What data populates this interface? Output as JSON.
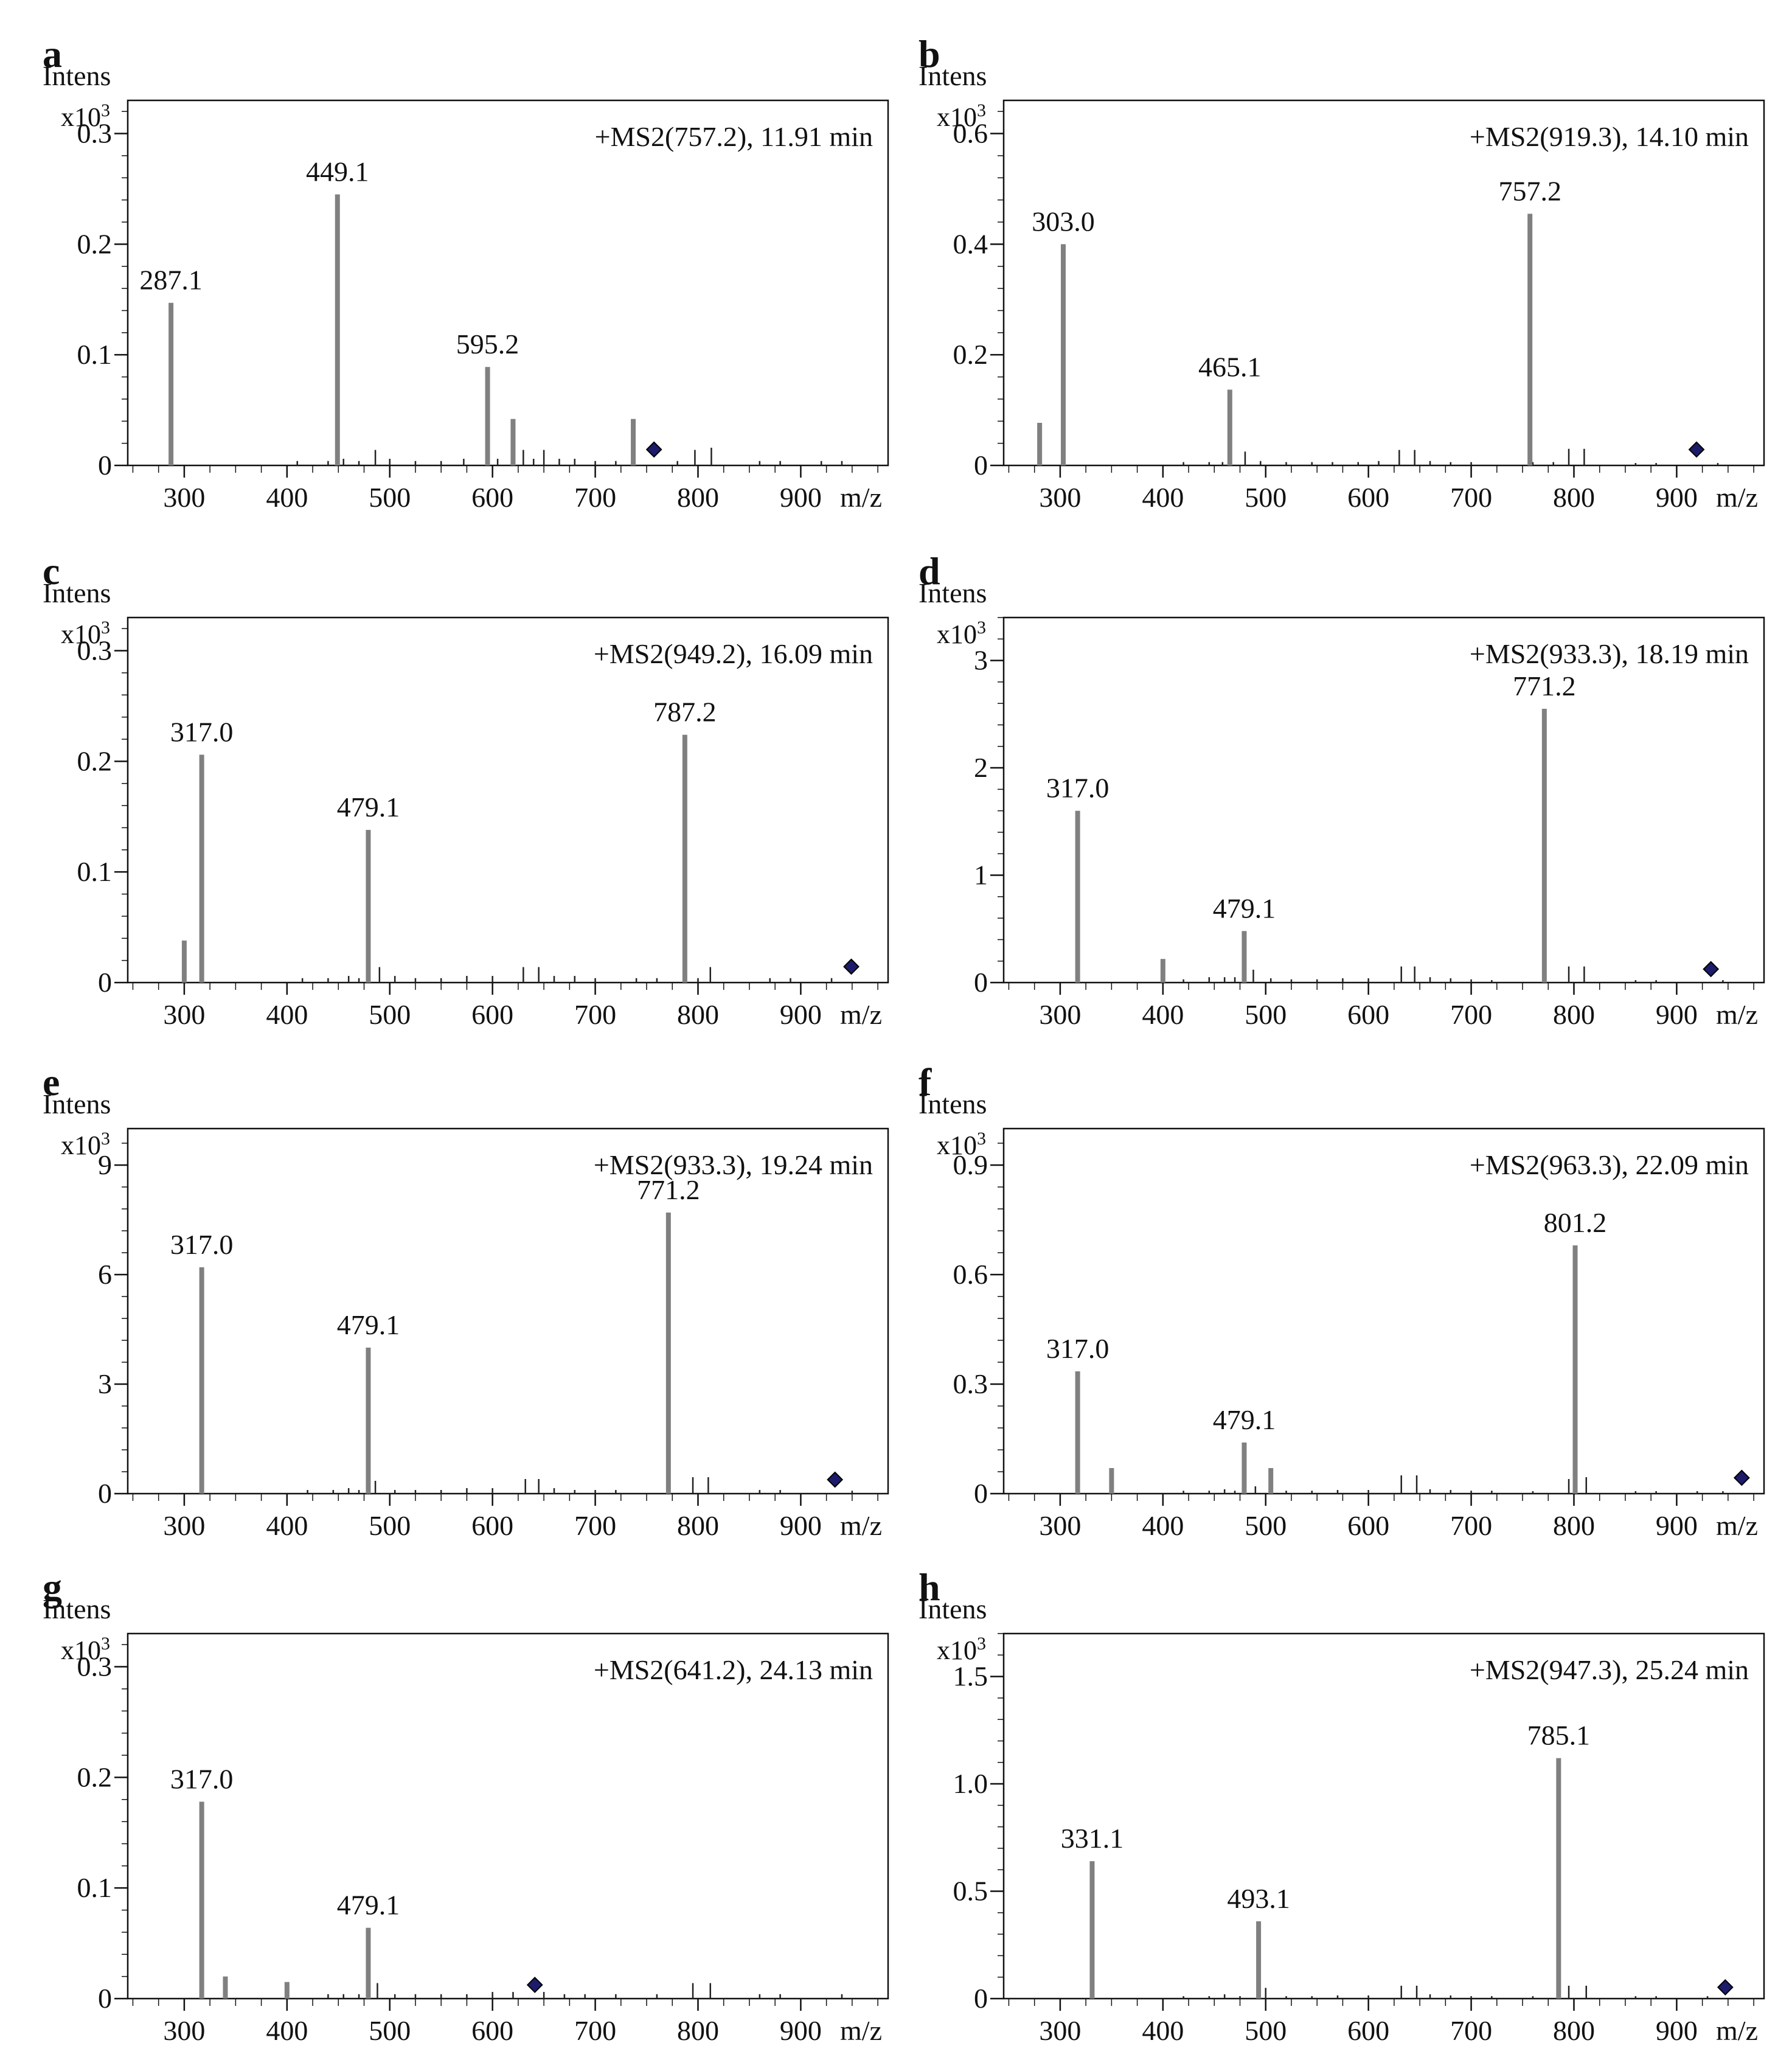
{
  "figure": {
    "y_unit": "Intens",
    "y_scale": "x10",
    "y_scale_exp": "3",
    "x_unit": "m/z"
  },
  "colors": {
    "major_peak": "#808080",
    "minor_peak": "#222222",
    "frame": "#111111",
    "precursor_marker": "#1c1c6b"
  },
  "chart_data": [
    {
      "panel": "a",
      "type": "bar",
      "title": "+MS2(757.2), 11.91 min",
      "ylabel": "Intens",
      "xlabel": "m/z",
      "x_range": [
        245,
        985
      ],
      "ylim": [
        0,
        0.33
      ],
      "y_ticks": [
        {
          "v": 0,
          "label": "0"
        },
        {
          "v": 0.1,
          "label": "0.1"
        },
        {
          "v": 0.2,
          "label": "0.2"
        },
        {
          "v": 0.3,
          "label": "0.3"
        }
      ],
      "x_ticks": [
        300,
        400,
        500,
        600,
        700,
        800,
        900
      ],
      "precursor": 757.2,
      "precursor_y": 0.01,
      "peaks": [
        {
          "x": 287.1,
          "y": 0.147,
          "label": "287.1"
        },
        {
          "x": 449.1,
          "y": 0.245,
          "label": "449.1"
        },
        {
          "x": 595.2,
          "y": 0.089,
          "label": "595.2"
        },
        {
          "x": 620,
          "y": 0.042
        },
        {
          "x": 737,
          "y": 0.042
        }
      ],
      "minor_peaks": [
        [
          410,
          0.004
        ],
        [
          440,
          0.004
        ],
        [
          455,
          0.006
        ],
        [
          470,
          0.004
        ],
        [
          486,
          0.014
        ],
        [
          500,
          0.006
        ],
        [
          525,
          0.004
        ],
        [
          550,
          0.004
        ],
        [
          572,
          0.006
        ],
        [
          605,
          0.006
        ],
        [
          630,
          0.014
        ],
        [
          640,
          0.006
        ],
        [
          650,
          0.014
        ],
        [
          665,
          0.006
        ],
        [
          680,
          0.006
        ],
        [
          700,
          0.004
        ],
        [
          720,
          0.004
        ],
        [
          780,
          0.004
        ],
        [
          797,
          0.014
        ],
        [
          813,
          0.016
        ],
        [
          860,
          0.004
        ],
        [
          880,
          0.004
        ],
        [
          920,
          0.004
        ],
        [
          940,
          0.004
        ]
      ]
    },
    {
      "panel": "b",
      "type": "bar",
      "title": "+MS2(919.3), 14.10 min",
      "ylabel": "Intens",
      "xlabel": "m/z",
      "x_range": [
        245,
        985
      ],
      "ylim": [
        0,
        0.66
      ],
      "y_ticks": [
        {
          "v": 0,
          "label": "0"
        },
        {
          "v": 0.2,
          "label": "0.2"
        },
        {
          "v": 0.4,
          "label": "0.4"
        },
        {
          "v": 0.6,
          "label": "0.6"
        }
      ],
      "x_ticks": [
        300,
        400,
        500,
        600,
        700,
        800,
        900
      ],
      "precursor": 919.3,
      "precursor_y": 0.02,
      "peaks": [
        {
          "x": 280,
          "y": 0.077
        },
        {
          "x": 303.0,
          "y": 0.4,
          "label": "303.0"
        },
        {
          "x": 465.1,
          "y": 0.137,
          "label": "465.1"
        },
        {
          "x": 757.2,
          "y": 0.455,
          "label": "757.2"
        }
      ],
      "minor_peaks": [
        [
          420,
          0.006
        ],
        [
          445,
          0.006
        ],
        [
          458,
          0.006
        ],
        [
          480,
          0.025
        ],
        [
          495,
          0.008
        ],
        [
          520,
          0.006
        ],
        [
          545,
          0.006
        ],
        [
          565,
          0.006
        ],
        [
          590,
          0.006
        ],
        [
          610,
          0.008
        ],
        [
          630,
          0.028
        ],
        [
          645,
          0.028
        ],
        [
          660,
          0.008
        ],
        [
          680,
          0.006
        ],
        [
          700,
          0.006
        ],
        [
          760,
          0.006
        ],
        [
          780,
          0.006
        ],
        [
          795,
          0.03
        ],
        [
          810,
          0.03
        ],
        [
          860,
          0.004
        ],
        [
          880,
          0.004
        ],
        [
          940,
          0.004
        ]
      ]
    },
    {
      "panel": "c",
      "type": "bar",
      "title": "+MS2(949.2), 16.09 min",
      "ylabel": "Intens",
      "xlabel": "m/z",
      "x_range": [
        245,
        985
      ],
      "ylim": [
        0,
        0.33
      ],
      "y_ticks": [
        {
          "v": 0,
          "label": "0"
        },
        {
          "v": 0.1,
          "label": "0.1"
        },
        {
          "v": 0.2,
          "label": "0.2"
        },
        {
          "v": 0.3,
          "label": "0.3"
        }
      ],
      "x_ticks": [
        300,
        400,
        500,
        600,
        700,
        800,
        900
      ],
      "precursor": 949.2,
      "precursor_y": 0.01,
      "peaks": [
        {
          "x": 300,
          "y": 0.038
        },
        {
          "x": 317.0,
          "y": 0.206,
          "label": "317.0"
        },
        {
          "x": 479.1,
          "y": 0.138,
          "label": "479.1"
        },
        {
          "x": 787.2,
          "y": 0.224,
          "label": "787.2"
        }
      ],
      "minor_peaks": [
        [
          415,
          0.004
        ],
        [
          440,
          0.004
        ],
        [
          460,
          0.006
        ],
        [
          470,
          0.004
        ],
        [
          490,
          0.014
        ],
        [
          505,
          0.006
        ],
        [
          525,
          0.004
        ],
        [
          550,
          0.004
        ],
        [
          575,
          0.006
        ],
        [
          600,
          0.006
        ],
        [
          630,
          0.014
        ],
        [
          645,
          0.014
        ],
        [
          660,
          0.006
        ],
        [
          680,
          0.006
        ],
        [
          700,
          0.004
        ],
        [
          740,
          0.004
        ],
        [
          760,
          0.004
        ],
        [
          800,
          0.004
        ],
        [
          812,
          0.014
        ],
        [
          870,
          0.004
        ],
        [
          890,
          0.004
        ],
        [
          930,
          0.004
        ]
      ]
    },
    {
      "panel": "d",
      "type": "bar",
      "title": "+MS2(933.3), 18.19 min",
      "ylabel": "Intens",
      "xlabel": "m/z",
      "x_range": [
        245,
        985
      ],
      "ylim": [
        0,
        3.4
      ],
      "y_ticks": [
        {
          "v": 0,
          "label": "0"
        },
        {
          "v": 1,
          "label": "1"
        },
        {
          "v": 2,
          "label": "2"
        },
        {
          "v": 3,
          "label": "3"
        }
      ],
      "x_ticks": [
        300,
        400,
        500,
        600,
        700,
        800,
        900
      ],
      "precursor": 933.3,
      "precursor_y": 0.08,
      "peaks": [
        {
          "x": 317.0,
          "y": 1.6,
          "label": "317.0"
        },
        {
          "x": 400,
          "y": 0.22
        },
        {
          "x": 479.1,
          "y": 0.48,
          "label": "479.1"
        },
        {
          "x": 771.2,
          "y": 2.55,
          "label": "771.2"
        }
      ],
      "minor_peaks": [
        [
          420,
          0.03
        ],
        [
          445,
          0.05
        ],
        [
          460,
          0.05
        ],
        [
          470,
          0.05
        ],
        [
          488,
          0.12
        ],
        [
          505,
          0.04
        ],
        [
          525,
          0.03
        ],
        [
          550,
          0.03
        ],
        [
          575,
          0.04
        ],
        [
          600,
          0.04
        ],
        [
          632,
          0.15
        ],
        [
          645,
          0.15
        ],
        [
          660,
          0.05
        ],
        [
          680,
          0.04
        ],
        [
          700,
          0.03
        ],
        [
          720,
          0.02
        ],
        [
          795,
          0.15
        ],
        [
          810,
          0.15
        ],
        [
          860,
          0.02
        ],
        [
          880,
          0.02
        ],
        [
          945,
          0.02
        ]
      ]
    },
    {
      "panel": "e",
      "type": "bar",
      "title": "+MS2(933.3), 19.24 min",
      "ylabel": "Intens",
      "xlabel": "m/z",
      "x_range": [
        245,
        985
      ],
      "ylim": [
        0,
        10
      ],
      "y_ticks": [
        {
          "v": 0,
          "label": "0"
        },
        {
          "v": 3,
          "label": "3"
        },
        {
          "v": 6,
          "label": "6"
        },
        {
          "v": 9,
          "label": "9"
        }
      ],
      "x_ticks": [
        300,
        400,
        500,
        600,
        700,
        800,
        900
      ],
      "precursor": 933.3,
      "precursor_y": 0.25,
      "peaks": [
        {
          "x": 317.0,
          "y": 6.2,
          "label": "317.0"
        },
        {
          "x": 479.1,
          "y": 4.0,
          "label": "479.1"
        },
        {
          "x": 771.2,
          "y": 7.7,
          "label": "771.2"
        }
      ],
      "minor_peaks": [
        [
          420,
          0.1
        ],
        [
          445,
          0.1
        ],
        [
          460,
          0.15
        ],
        [
          470,
          0.1
        ],
        [
          486,
          0.35
        ],
        [
          505,
          0.1
        ],
        [
          525,
          0.1
        ],
        [
          550,
          0.1
        ],
        [
          575,
          0.15
        ],
        [
          600,
          0.15
        ],
        [
          632,
          0.4
        ],
        [
          645,
          0.4
        ],
        [
          660,
          0.15
        ],
        [
          680,
          0.1
        ],
        [
          700,
          0.1
        ],
        [
          720,
          0.1
        ],
        [
          795,
          0.45
        ],
        [
          810,
          0.45
        ],
        [
          860,
          0.1
        ],
        [
          880,
          0.1
        ],
        [
          950,
          0.08
        ]
      ]
    },
    {
      "panel": "f",
      "type": "bar",
      "title": "+MS2(963.3), 22.09 min",
      "ylabel": "Intens",
      "xlabel": "m/z",
      "x_range": [
        245,
        985
      ],
      "ylim": [
        0,
        1.0
      ],
      "y_ticks": [
        {
          "v": 0,
          "label": "0"
        },
        {
          "v": 0.3,
          "label": "0.3"
        },
        {
          "v": 0.6,
          "label": "0.6"
        },
        {
          "v": 0.9,
          "label": "0.9"
        }
      ],
      "x_ticks": [
        300,
        400,
        500,
        600,
        700,
        800,
        900
      ],
      "precursor": 963.3,
      "precursor_y": 0.03,
      "peaks": [
        {
          "x": 317.0,
          "y": 0.335,
          "label": "317.0"
        },
        {
          "x": 350,
          "y": 0.07
        },
        {
          "x": 479.1,
          "y": 0.14,
          "label": "479.1"
        },
        {
          "x": 505,
          "y": 0.07
        },
        {
          "x": 801.2,
          "y": 0.68,
          "label": "801.2"
        }
      ],
      "minor_peaks": [
        [
          420,
          0.008
        ],
        [
          445,
          0.008
        ],
        [
          460,
          0.012
        ],
        [
          470,
          0.008
        ],
        [
          490,
          0.02
        ],
        [
          520,
          0.008
        ],
        [
          545,
          0.008
        ],
        [
          570,
          0.01
        ],
        [
          600,
          0.01
        ],
        [
          632,
          0.05
        ],
        [
          647,
          0.05
        ],
        [
          660,
          0.012
        ],
        [
          680,
          0.01
        ],
        [
          700,
          0.008
        ],
        [
          720,
          0.008
        ],
        [
          760,
          0.006
        ],
        [
          795,
          0.04
        ],
        [
          812,
          0.045
        ],
        [
          860,
          0.006
        ],
        [
          880,
          0.006
        ],
        [
          920,
          0.006
        ],
        [
          945,
          0.006
        ]
      ]
    },
    {
      "panel": "g",
      "type": "bar",
      "title": "+MS2(641.2), 24.13 min",
      "ylabel": "Intens",
      "xlabel": "m/z",
      "x_range": [
        245,
        985
      ],
      "ylim": [
        0,
        0.33
      ],
      "y_ticks": [
        {
          "v": 0,
          "label": "0"
        },
        {
          "v": 0.1,
          "label": "0.1"
        },
        {
          "v": 0.2,
          "label": "0.2"
        },
        {
          "v": 0.3,
          "label": "0.3"
        }
      ],
      "x_ticks": [
        300,
        400,
        500,
        600,
        700,
        800,
        900
      ],
      "precursor": 641.2,
      "precursor_y": 0.008,
      "peaks": [
        {
          "x": 317.0,
          "y": 0.178,
          "label": "317.0"
        },
        {
          "x": 340,
          "y": 0.02
        },
        {
          "x": 400,
          "y": 0.015
        },
        {
          "x": 479.1,
          "y": 0.064,
          "label": "479.1"
        }
      ],
      "minor_peaks": [
        [
          440,
          0.004
        ],
        [
          455,
          0.004
        ],
        [
          470,
          0.004
        ],
        [
          488,
          0.014
        ],
        [
          505,
          0.004
        ],
        [
          525,
          0.004
        ],
        [
          550,
          0.004
        ],
        [
          575,
          0.004
        ],
        [
          600,
          0.006
        ],
        [
          620,
          0.006
        ],
        [
          650,
          0.006
        ],
        [
          670,
          0.004
        ],
        [
          690,
          0.004
        ],
        [
          720,
          0.004
        ],
        [
          760,
          0.004
        ],
        [
          795,
          0.014
        ],
        [
          812,
          0.014
        ],
        [
          860,
          0.004
        ],
        [
          880,
          0.004
        ],
        [
          940,
          0.004
        ]
      ]
    },
    {
      "panel": "h",
      "type": "bar",
      "title": "+MS2(947.3), 25.24 min",
      "ylabel": "Intens",
      "xlabel": "m/z",
      "x_range": [
        245,
        985
      ],
      "ylim": [
        0,
        1.7
      ],
      "y_ticks": [
        {
          "v": 0,
          "label": "0"
        },
        {
          "v": 0.5,
          "label": "0.5"
        },
        {
          "v": 1.0,
          "label": "1.0"
        },
        {
          "v": 1.5,
          "label": "1.5"
        }
      ],
      "x_ticks": [
        300,
        400,
        500,
        600,
        700,
        800,
        900
      ],
      "precursor": 947.3,
      "precursor_y": 0.03,
      "peaks": [
        {
          "x": 331.1,
          "y": 0.64,
          "label": "331.1"
        },
        {
          "x": 493.1,
          "y": 0.36,
          "label": "493.1"
        },
        {
          "x": 785.1,
          "y": 1.12,
          "label": "785.1"
        }
      ],
      "minor_peaks": [
        [
          420,
          0.01
        ],
        [
          445,
          0.01
        ],
        [
          460,
          0.02
        ],
        [
          475,
          0.01
        ],
        [
          500,
          0.05
        ],
        [
          520,
          0.01
        ],
        [
          545,
          0.01
        ],
        [
          570,
          0.015
        ],
        [
          600,
          0.015
        ],
        [
          632,
          0.06
        ],
        [
          647,
          0.06
        ],
        [
          660,
          0.02
        ],
        [
          680,
          0.015
        ],
        [
          700,
          0.01
        ],
        [
          720,
          0.01
        ],
        [
          760,
          0.01
        ],
        [
          795,
          0.06
        ],
        [
          812,
          0.06
        ],
        [
          860,
          0.01
        ],
        [
          880,
          0.01
        ],
        [
          930,
          0.01
        ]
      ]
    }
  ]
}
